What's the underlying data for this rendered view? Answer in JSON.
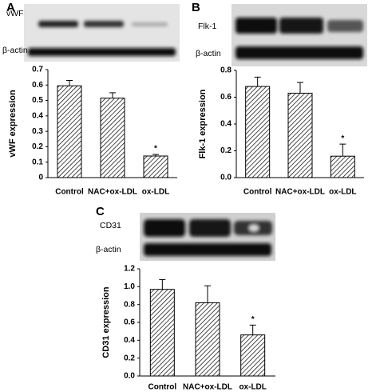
{
  "chart_data": [
    {
      "type": "bar",
      "panel": "A",
      "blot_labels": [
        "vWF",
        "β-actin"
      ],
      "ylabel": "vWF expression",
      "categories": [
        "Control",
        "NAC+ox-LDL",
        "ox-LDL"
      ],
      "values": [
        0.595,
        0.515,
        0.14
      ],
      "errors": [
        0.035,
        0.035,
        0.01
      ],
      "color": "#000000",
      "ylim": [
        0,
        0.7
      ],
      "yticks": [
        0,
        0.1,
        0.2,
        0.3,
        0.4,
        0.5,
        0.6,
        0.7
      ],
      "annotations": [
        {
          "text": "*",
          "x": "ox-LDL"
        }
      ]
    },
    {
      "type": "bar",
      "panel": "B",
      "blot_labels": [
        "Flk-1",
        "β-actin"
      ],
      "ylabel": "Flk-1 expression",
      "categories": [
        "Control",
        "NAC+ox-LDL",
        "ox-LDL"
      ],
      "values": [
        0.68,
        0.63,
        0.16
      ],
      "errors": [
        0.07,
        0.08,
        0.09
      ],
      "color": "#000000",
      "ylim": [
        0,
        0.8
      ],
      "yticks": [
        {
          "value": 0,
          "label": "0.0"
        },
        0.2,
        0.4,
        0.6,
        0.8
      ],
      "annotations": [
        {
          "text": "*",
          "x": "ox-LDL"
        }
      ]
    },
    {
      "type": "bar",
      "panel": "C",
      "blot_labels": [
        "CD31",
        "β-actin"
      ],
      "ylabel": "CD31 expression",
      "categories": [
        "Control",
        "NAC+ox-LDL",
        "ox-LDL"
      ],
      "values": [
        0.97,
        0.82,
        0.46
      ],
      "errors": [
        0.11,
        0.19,
        0.11
      ],
      "color": "#000000",
      "ylim": [
        0,
        1.2
      ],
      "yticks": [
        {
          "value": 0,
          "label": "0.0"
        },
        0.2,
        0.4,
        0.6,
        0.8,
        {
          "value": 1,
          "label": "1.0"
        },
        1.2
      ],
      "annotations": [
        {
          "text": "*",
          "x": "ox-LDL"
        }
      ]
    }
  ]
}
